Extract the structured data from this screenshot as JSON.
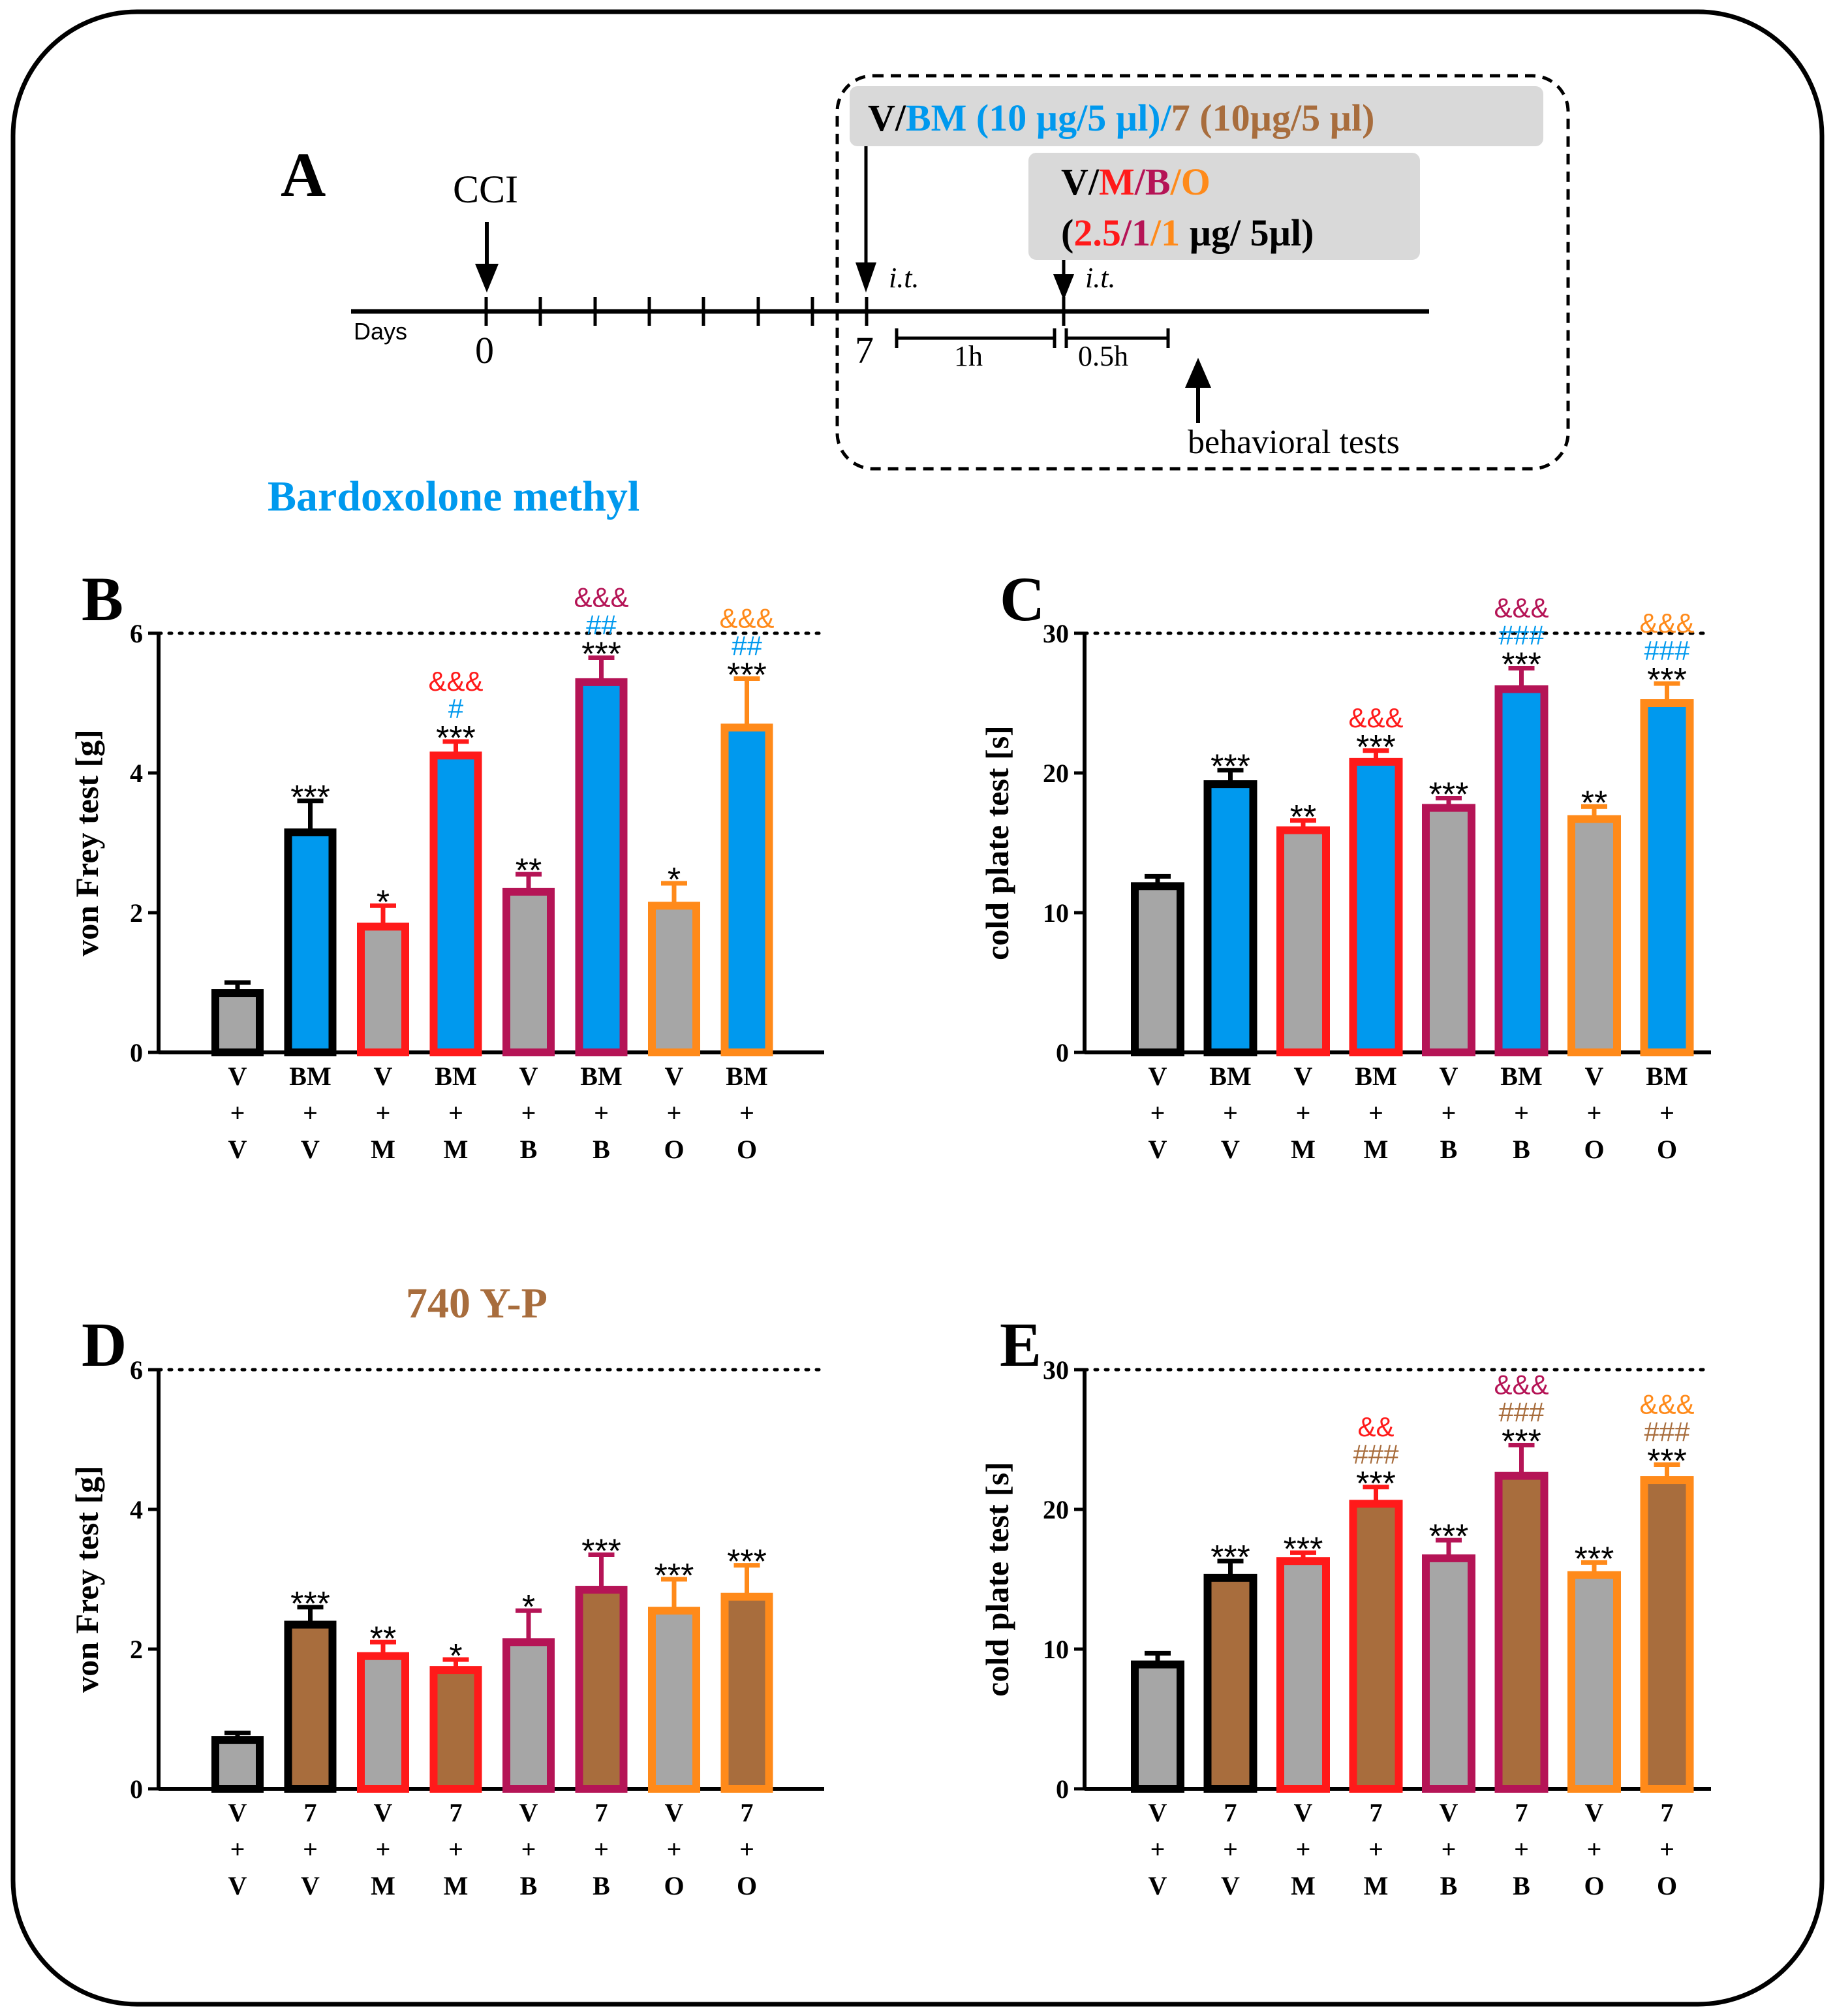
{
  "colors": {
    "vehicle": "#000000",
    "bm": "#0099ee",
    "m": "#ff1a1a",
    "b": "#b51456",
    "o": "#ff8a1a",
    "y7": "#a86d3d",
    "gray_fill": "#a6a6a6",
    "timeline_box": "#d9d9d9"
  },
  "panel_a": {
    "label": "A",
    "cci": "CCI",
    "days": "Days",
    "day0": "0",
    "day7": "7",
    "it": "i.t.",
    "it2": "i.t.",
    "dur1": "1h",
    "dur2": "0.5h",
    "behavioral": "behavioral tests",
    "box1": {
      "v": "V/",
      "bm": "BM (10 µg/5 µl)/",
      "seven": "7",
      "seven_dose": " (10µg/5 µl)"
    },
    "box2": {
      "v": "V/",
      "m": "M",
      "slash1": "/",
      "b": "B",
      "slash2": "/",
      "o": "O",
      "open": "(",
      "m_dose": "2.5",
      "sep1": "/",
      "b_dose": "1",
      "sep2": "/",
      "o_dose": "1",
      "unit": " µg/ 5µl)"
    }
  },
  "section_titles": {
    "bm": "Bardoxolone methyl",
    "y7": "740 Y-P"
  },
  "chart_data": [
    {
      "panel": "B",
      "type": "bar",
      "ylabel": "von Frey test [g]",
      "ylim": [
        0,
        6
      ],
      "yticks": [
        0,
        2,
        4,
        6
      ],
      "dotted_ref": 6,
      "categories": [
        [
          "V",
          "+",
          "V"
        ],
        [
          "BM",
          "+",
          "V"
        ],
        [
          "V",
          "+",
          "M"
        ],
        [
          "BM",
          "+",
          "M"
        ],
        [
          "V",
          "+",
          "B"
        ],
        [
          "BM",
          "+",
          "B"
        ],
        [
          "V",
          "+",
          "O"
        ],
        [
          "BM",
          "+",
          "O"
        ]
      ],
      "values": [
        0.85,
        3.15,
        1.8,
        4.25,
        2.3,
        5.3,
        2.1,
        4.65
      ],
      "errors": [
        0.15,
        0.45,
        0.3,
        0.2,
        0.25,
        0.35,
        0.32,
        0.7
      ],
      "outline": [
        "vehicle",
        "vehicle",
        "m",
        "m",
        "b",
        "b",
        "o",
        "o"
      ],
      "fill": [
        "gray",
        "bm",
        "gray",
        "bm",
        "gray",
        "bm",
        "gray",
        "bm"
      ],
      "annotations": [
        [],
        [
          {
            "t": "***",
            "c": "vehicle"
          }
        ],
        [
          {
            "t": "*",
            "c": "vehicle"
          }
        ],
        [
          {
            "t": "***",
            "c": "vehicle"
          },
          {
            "t": "#",
            "c": "bm"
          },
          {
            "t": "&&&",
            "c": "m"
          }
        ],
        [
          {
            "t": "**",
            "c": "vehicle"
          }
        ],
        [
          {
            "t": "***",
            "c": "vehicle"
          },
          {
            "t": "##",
            "c": "bm"
          },
          {
            "t": "&&&",
            "c": "b"
          }
        ],
        [
          {
            "t": "*",
            "c": "vehicle"
          }
        ],
        [
          {
            "t": "***",
            "c": "vehicle"
          },
          {
            "t": "##",
            "c": "bm"
          },
          {
            "t": "&&&",
            "c": "o"
          }
        ]
      ]
    },
    {
      "panel": "C",
      "type": "bar",
      "ylabel": "cold plate test [s]",
      "ylim": [
        0,
        30
      ],
      "yticks": [
        0,
        10,
        20,
        30
      ],
      "dotted_ref": 30,
      "categories": [
        [
          "V",
          "+",
          "V"
        ],
        [
          "BM",
          "+",
          "V"
        ],
        [
          "V",
          "+",
          "M"
        ],
        [
          "BM",
          "+",
          "M"
        ],
        [
          "V",
          "+",
          "B"
        ],
        [
          "BM",
          "+",
          "B"
        ],
        [
          "V",
          "+",
          "O"
        ],
        [
          "BM",
          "+",
          "O"
        ]
      ],
      "values": [
        11.9,
        19.2,
        15.9,
        20.8,
        17.5,
        26.0,
        16.7,
        25.0
      ],
      "errors": [
        0.7,
        1.0,
        0.7,
        0.8,
        0.7,
        1.5,
        0.9,
        1.4
      ],
      "outline": [
        "vehicle",
        "vehicle",
        "m",
        "m",
        "b",
        "b",
        "o",
        "o"
      ],
      "fill": [
        "gray",
        "bm",
        "gray",
        "bm",
        "gray",
        "bm",
        "gray",
        "bm"
      ],
      "annotations": [
        [],
        [
          {
            "t": "***",
            "c": "vehicle"
          }
        ],
        [
          {
            "t": "**",
            "c": "vehicle"
          }
        ],
        [
          {
            "t": "***",
            "c": "vehicle"
          },
          {
            "t": "&&&",
            "c": "m"
          }
        ],
        [
          {
            "t": "***",
            "c": "vehicle"
          }
        ],
        [
          {
            "t": "***",
            "c": "vehicle"
          },
          {
            "t": "###",
            "c": "bm"
          },
          {
            "t": "&&&",
            "c": "b"
          }
        ],
        [
          {
            "t": "**",
            "c": "vehicle"
          }
        ],
        [
          {
            "t": "***",
            "c": "vehicle"
          },
          {
            "t": "###",
            "c": "bm"
          },
          {
            "t": "&&&",
            "c": "o"
          }
        ]
      ]
    },
    {
      "panel": "D",
      "type": "bar",
      "ylabel": "von Frey test [g]",
      "ylim": [
        0,
        6
      ],
      "yticks": [
        0,
        2,
        4,
        6
      ],
      "dotted_ref": 6,
      "categories": [
        [
          "V",
          "+",
          "V"
        ],
        [
          "7",
          "+",
          "V"
        ],
        [
          "V",
          "+",
          "M"
        ],
        [
          "7",
          "+",
          "M"
        ],
        [
          "V",
          "+",
          "B"
        ],
        [
          "7",
          "+",
          "B"
        ],
        [
          "V",
          "+",
          "O"
        ],
        [
          "7",
          "+",
          "O"
        ]
      ],
      "values": [
        0.7,
        2.35,
        1.9,
        1.7,
        2.1,
        2.85,
        2.55,
        2.75
      ],
      "errors": [
        0.1,
        0.25,
        0.2,
        0.15,
        0.45,
        0.5,
        0.45,
        0.45
      ],
      "outline": [
        "vehicle",
        "vehicle",
        "m",
        "m",
        "b",
        "b",
        "o",
        "o"
      ],
      "fill": [
        "gray",
        "y7",
        "gray",
        "y7",
        "gray",
        "y7",
        "gray",
        "y7"
      ],
      "annotations": [
        [],
        [
          {
            "t": "***",
            "c": "vehicle"
          }
        ],
        [
          {
            "t": "**",
            "c": "vehicle"
          }
        ],
        [
          {
            "t": "*",
            "c": "vehicle"
          }
        ],
        [
          {
            "t": "*",
            "c": "vehicle"
          }
        ],
        [
          {
            "t": "***",
            "c": "vehicle"
          }
        ],
        [
          {
            "t": "***",
            "c": "vehicle"
          }
        ],
        [
          {
            "t": "***",
            "c": "vehicle"
          }
        ]
      ]
    },
    {
      "panel": "E",
      "type": "bar",
      "ylabel": "cold plate test [s]",
      "ylim": [
        0,
        30
      ],
      "yticks": [
        0,
        10,
        20,
        30
      ],
      "dotted_ref": 30,
      "categories": [
        [
          "V",
          "+",
          "V"
        ],
        [
          "7",
          "+",
          "V"
        ],
        [
          "V",
          "+",
          "M"
        ],
        [
          "7",
          "+",
          "M"
        ],
        [
          "V",
          "+",
          "B"
        ],
        [
          "7",
          "+",
          "B"
        ],
        [
          "V",
          "+",
          "O"
        ],
        [
          "7",
          "+",
          "O"
        ]
      ],
      "values": [
        8.9,
        15.1,
        16.3,
        20.4,
        16.5,
        22.4,
        15.3,
        22.1
      ],
      "errors": [
        0.8,
        1.2,
        0.6,
        1.2,
        1.3,
        2.2,
        0.9,
        1.1
      ],
      "outline": [
        "vehicle",
        "vehicle",
        "m",
        "m",
        "b",
        "b",
        "o",
        "o"
      ],
      "fill": [
        "gray",
        "y7",
        "gray",
        "y7",
        "gray",
        "y7",
        "gray",
        "y7"
      ],
      "annotations": [
        [],
        [
          {
            "t": "***",
            "c": "vehicle"
          }
        ],
        [
          {
            "t": "***",
            "c": "vehicle"
          }
        ],
        [
          {
            "t": "***",
            "c": "vehicle"
          },
          {
            "t": "###",
            "c": "y7"
          },
          {
            "t": "&&",
            "c": "m"
          }
        ],
        [
          {
            "t": "***",
            "c": "vehicle"
          }
        ],
        [
          {
            "t": "***",
            "c": "vehicle"
          },
          {
            "t": "###",
            "c": "y7"
          },
          {
            "t": "&&&",
            "c": "b"
          }
        ],
        [
          {
            "t": "***",
            "c": "vehicle"
          }
        ],
        [
          {
            "t": "***",
            "c": "vehicle"
          },
          {
            "t": "###",
            "c": "y7"
          },
          {
            "t": "&&&",
            "c": "o"
          }
        ]
      ]
    }
  ]
}
